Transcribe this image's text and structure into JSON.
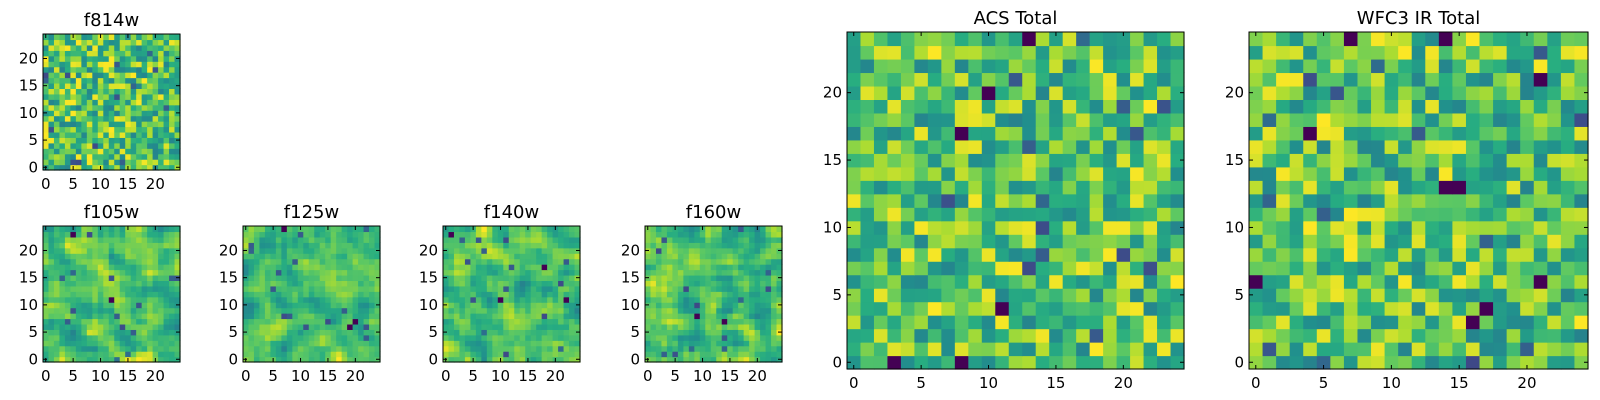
{
  "chart_data": [
    {
      "type": "heatmap",
      "id": "f814w",
      "title": "f814w",
      "colormap": "viridis",
      "grid_size": [
        25,
        25
      ],
      "xlim": [
        -0.5,
        24.5
      ],
      "ylim": [
        -0.5,
        24.5
      ],
      "xticks": [
        0,
        5,
        10,
        15,
        20
      ],
      "yticks": [
        0,
        5,
        10,
        15,
        20
      ],
      "value_range": [
        0,
        1
      ],
      "seed": 814,
      "pattern": "fine_noise"
    },
    {
      "type": "heatmap",
      "id": "f105w",
      "title": "f105w",
      "colormap": "viridis",
      "grid_size": [
        25,
        25
      ],
      "xlim": [
        -0.5,
        24.5
      ],
      "ylim": [
        -0.5,
        24.5
      ],
      "xticks": [
        0,
        5,
        10,
        15,
        20
      ],
      "yticks": [
        0,
        5,
        10,
        15,
        20
      ],
      "value_range": [
        0,
        1
      ],
      "seed": 105,
      "pattern": "smooth_noise",
      "dark_pixels": [
        [
          5,
          23
        ],
        [
          12,
          11
        ]
      ]
    },
    {
      "type": "heatmap",
      "id": "f125w",
      "title": "f125w",
      "colormap": "viridis",
      "grid_size": [
        25,
        25
      ],
      "xlim": [
        -0.5,
        24.5
      ],
      "ylim": [
        -0.5,
        24.5
      ],
      "xticks": [
        0,
        5,
        10,
        15,
        20
      ],
      "yticks": [
        0,
        5,
        10,
        15,
        20
      ],
      "value_range": [
        0,
        1
      ],
      "seed": 125,
      "pattern": "smooth_noise",
      "dark_pixels": [
        [
          7,
          24
        ],
        [
          19,
          6
        ],
        [
          20,
          7
        ]
      ]
    },
    {
      "type": "heatmap",
      "id": "f140w",
      "title": "f140w",
      "colormap": "viridis",
      "grid_size": [
        25,
        25
      ],
      "xlim": [
        -0.5,
        24.5
      ],
      "ylim": [
        -0.5,
        24.5
      ],
      "xticks": [
        0,
        5,
        10,
        15,
        20
      ],
      "yticks": [
        0,
        5,
        10,
        15,
        20
      ],
      "value_range": [
        0,
        1
      ],
      "seed": 140,
      "pattern": "smooth_noise",
      "dark_pixels": [
        [
          1,
          23
        ],
        [
          10,
          11
        ],
        [
          22,
          11
        ],
        [
          18,
          17
        ]
      ]
    },
    {
      "type": "heatmap",
      "id": "f160w",
      "title": "f160w",
      "colormap": "viridis",
      "grid_size": [
        25,
        25
      ],
      "xlim": [
        -0.5,
        24.5
      ],
      "ylim": [
        -0.5,
        24.5
      ],
      "xticks": [
        0,
        5,
        10,
        15,
        20
      ],
      "yticks": [
        0,
        5,
        10,
        15,
        20
      ],
      "value_range": [
        0,
        1
      ],
      "seed": 160,
      "pattern": "smooth_noise",
      "dark_pixels": [
        [
          9,
          8
        ],
        [
          14,
          7
        ]
      ]
    },
    {
      "type": "heatmap",
      "id": "acs_total",
      "title": "ACS Total",
      "colormap": "viridis",
      "grid_size": [
        25,
        25
      ],
      "xlim": [
        -0.5,
        24.5
      ],
      "ylim": [
        -0.5,
        24.5
      ],
      "xticks": [
        0,
        5,
        10,
        15,
        20
      ],
      "yticks": [
        0,
        5,
        10,
        15,
        20
      ],
      "value_range": [
        0,
        1
      ],
      "seed": 2001,
      "pattern": "fine_noise",
      "dark_pixels": [
        [
          13,
          24
        ],
        [
          10,
          20
        ],
        [
          8,
          17
        ],
        [
          3,
          0
        ],
        [
          8,
          0
        ],
        [
          11,
          4
        ]
      ]
    },
    {
      "type": "heatmap",
      "id": "wfc3_ir_total",
      "title": "WFC3 IR Total",
      "colormap": "viridis",
      "grid_size": [
        25,
        25
      ],
      "xlim": [
        -0.5,
        24.5
      ],
      "ylim": [
        -0.5,
        24.5
      ],
      "xticks": [
        0,
        5,
        10,
        15,
        20
      ],
      "yticks": [
        0,
        5,
        10,
        15,
        20
      ],
      "value_range": [
        0,
        1
      ],
      "seed": 3001,
      "pattern": "fine_noise",
      "dark_pixels": [
        [
          7,
          24
        ],
        [
          14,
          24
        ],
        [
          4,
          17
        ],
        [
          14,
          13
        ],
        [
          15,
          13
        ],
        [
          21,
          21
        ],
        [
          0,
          6
        ],
        [
          17,
          4
        ],
        [
          16,
          3
        ],
        [
          21,
          6
        ]
      ]
    }
  ]
}
